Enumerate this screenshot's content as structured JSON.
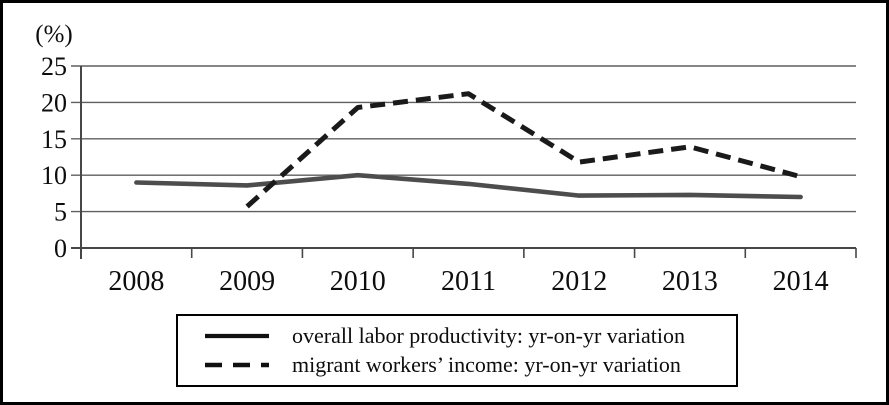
{
  "chart_data": {
    "type": "line",
    "title": "",
    "ylabel": "(%)",
    "xlabel": "",
    "x": [
      "2008",
      "2009",
      "2010",
      "2011",
      "2012",
      "2013",
      "2014"
    ],
    "series": [
      {
        "name": "overall labor productivity: yr-on-yr variation",
        "style": "solid",
        "color": "#4d4d4d",
        "values": [
          9.0,
          8.6,
          10.0,
          8.8,
          7.2,
          7.3,
          7.0
        ]
      },
      {
        "name": "migrant workers’ income: yr-on-yr variation",
        "style": "dashed",
        "color": "#1a1a1a",
        "values": [
          null,
          5.7,
          19.3,
          21.2,
          11.8,
          13.9,
          9.8
        ]
      }
    ],
    "ylim": [
      0,
      25
    ],
    "yticks": [
      0,
      5,
      10,
      15,
      20,
      25
    ],
    "grid": true,
    "legend_position": "bottom"
  }
}
